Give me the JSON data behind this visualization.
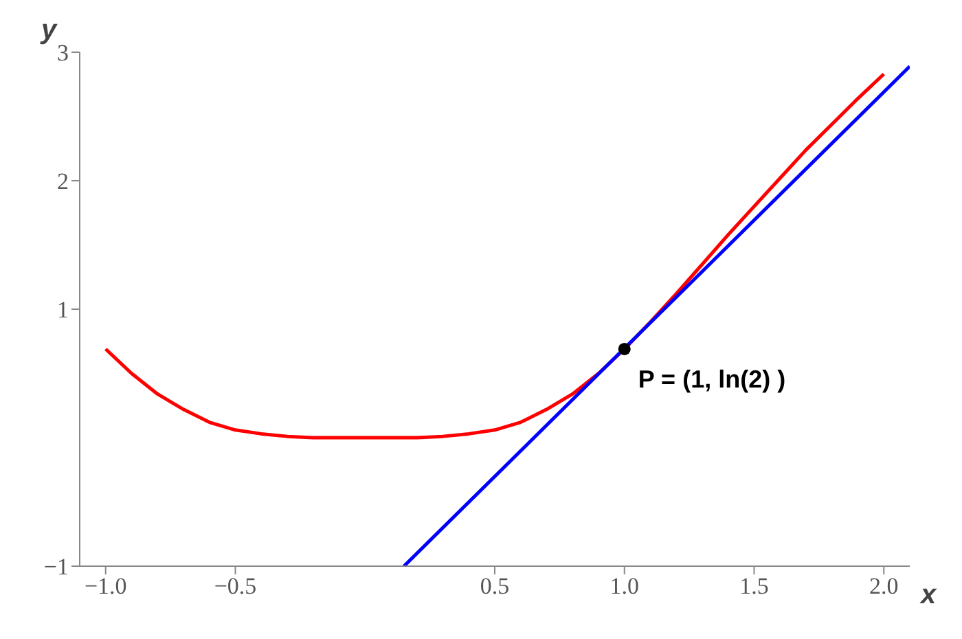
{
  "chart_data": {
    "type": "line",
    "xlabel": "x",
    "ylabel": "y",
    "xlim": [
      -1.1,
      2.1
    ],
    "ylim": [
      -1,
      3
    ],
    "xticks": [
      {
        "value": -1,
        "label": "−1.0"
      },
      {
        "value": -0.5,
        "label": "−0.5"
      },
      {
        "value": 0.5,
        "label": "0.5"
      },
      {
        "value": 1,
        "label": "1.0"
      },
      {
        "value": 1.5,
        "label": "1.5"
      },
      {
        "value": 2,
        "label": "2.0"
      }
    ],
    "yticks": [
      {
        "value": -1,
        "label": "−1"
      },
      1,
      2,
      3
    ],
    "grid": false,
    "marker": "none",
    "line_style": "solid",
    "series": [
      {
        "color": "#ff0000",
        "x": [
          -1,
          -0.9,
          -0.8,
          -0.7,
          -0.6,
          -0.5,
          -0.4,
          -0.3,
          -0.2,
          -0.1,
          0,
          0.1,
          0.2,
          0.3,
          0.4,
          0.5,
          0.6,
          0.7,
          0.8,
          0.9,
          1,
          1.1,
          1.2,
          1.3,
          1.4,
          1.5,
          1.6,
          1.7,
          1.8,
          1.9,
          2
        ],
        "values": [
          0.69,
          0.5,
          0.34,
          0.22,
          0.12,
          0.06,
          0.03,
          0.01,
          0,
          0,
          0,
          0,
          0,
          0.01,
          0.03,
          0.06,
          0.12,
          0.22,
          0.34,
          0.5,
          0.69,
          0.9,
          1.12,
          1.35,
          1.58,
          1.8,
          2.02,
          2.24,
          2.44,
          2.64,
          2.83
        ]
      },
      {
        "color": "#0000ff",
        "x": [
          0.15,
          2.1
        ],
        "values": [
          -1,
          2.89
        ]
      },
      {
        "type": "scatter",
        "color": "#000000",
        "x": [
          1
        ],
        "values": [
          0.69
        ],
        "marker": "circle"
      }
    ],
    "annotations": [
      {
        "text": "P = (1, ln(2) )",
        "x": 1,
        "y": 0.69
      }
    ]
  }
}
